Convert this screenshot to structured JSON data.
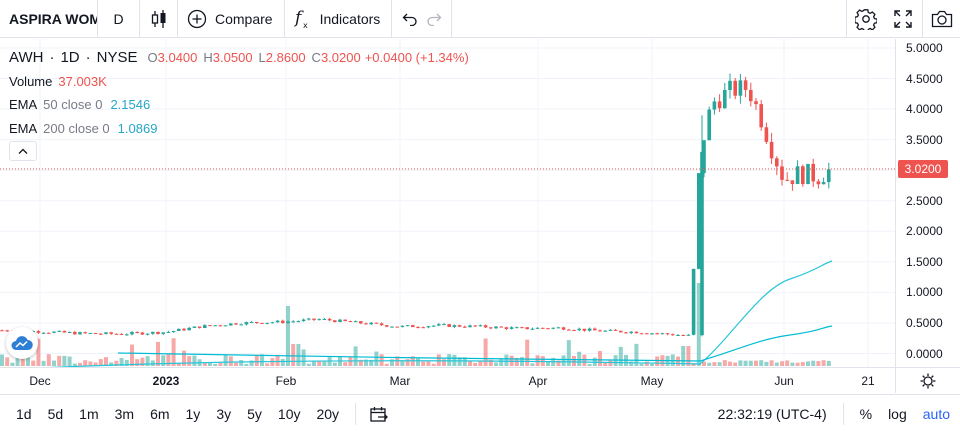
{
  "toolbar": {
    "symbol": "ASPIRA WOMEN'S HEALTH INC",
    "interval": "D",
    "compare_label": "Compare",
    "indicators_label": "Indicators",
    "chart_type_icon": "candlestick-icon",
    "right_icons": [
      "gear-icon",
      "fullscreen-icon",
      "camera-icon"
    ]
  },
  "legend": {
    "symbol": "AWH",
    "interval": "1D",
    "exchange": "NYSE",
    "open_key": "O",
    "open": "3.0400",
    "high_key": "H",
    "high": "3.0500",
    "low_key": "L",
    "low": "2.8600",
    "close_key": "C",
    "close": "3.0200",
    "change": "+0.0400 (+1.34%)",
    "volume_label": "Volume",
    "volume_value": "37.003K",
    "ema50_label": "EMA",
    "ema50_params": "50 close 0",
    "ema50_value": "2.1546",
    "ema200_label": "EMA",
    "ema200_params": "200 close 0",
    "ema200_value": "1.0869"
  },
  "price_axis": {
    "ticks": [
      "5.0000",
      "4.5000",
      "4.0000",
      "3.5000",
      "3.0000",
      "2.5000",
      "2.0000",
      "1.5000",
      "1.0000",
      "0.5000",
      "0.0000"
    ],
    "last_price": "3.0200"
  },
  "time_axis": {
    "labels": [
      {
        "text": "Dec",
        "bold": false
      },
      {
        "text": "2023",
        "bold": true
      },
      {
        "text": "Feb",
        "bold": false
      },
      {
        "text": "Mar",
        "bold": false
      },
      {
        "text": "Apr",
        "bold": false
      },
      {
        "text": "May",
        "bold": false
      },
      {
        "text": "Jun",
        "bold": false
      },
      {
        "text": "21",
        "bold": false
      }
    ]
  },
  "bottom": {
    "ranges": [
      "1d",
      "5d",
      "1m",
      "3m",
      "6m",
      "1y",
      "3y",
      "5y",
      "10y",
      "20y"
    ],
    "clock": "22:32:19 (UTC-4)",
    "percent_label": "%",
    "log_label": "log",
    "auto_label": "auto"
  },
  "colors": {
    "up": "#26a69a",
    "down": "#ef5350",
    "ema50": "#26c6da",
    "ema200": "#00bcd4",
    "accent": "#2962ff"
  },
  "chart_data": {
    "type": "candlestick",
    "price_range": [
      0,
      5
    ],
    "close_series": [
      {
        "date": "2022-11-28",
        "close": 0.38
      },
      {
        "date": "2022-12-05",
        "close": 0.36
      },
      {
        "date": "2022-12-12",
        "close": 0.34
      },
      {
        "date": "2022-12-19",
        "close": 0.33
      },
      {
        "date": "2022-12-27",
        "close": 0.32
      },
      {
        "date": "2023-01-03",
        "close": 0.33
      },
      {
        "date": "2023-01-09",
        "close": 0.36
      },
      {
        "date": "2023-01-17",
        "close": 0.42
      },
      {
        "date": "2023-01-23",
        "close": 0.48
      },
      {
        "date": "2023-01-30",
        "close": 0.5
      },
      {
        "date": "2023-02-06",
        "close": 0.49
      },
      {
        "date": "2023-02-13",
        "close": 0.52
      },
      {
        "date": "2023-02-21",
        "close": 0.55
      },
      {
        "date": "2023-02-27",
        "close": 0.52
      },
      {
        "date": "2023-03-06",
        "close": 0.48
      },
      {
        "date": "2023-03-13",
        "close": 0.42
      },
      {
        "date": "2023-03-20",
        "close": 0.46
      },
      {
        "date": "2023-03-27",
        "close": 0.44
      },
      {
        "date": "2023-04-03",
        "close": 0.42
      },
      {
        "date": "2023-04-10",
        "close": 0.46
      },
      {
        "date": "2023-04-17",
        "close": 0.4
      },
      {
        "date": "2023-04-24",
        "close": 0.39
      },
      {
        "date": "2023-05-01",
        "close": 0.37
      },
      {
        "date": "2023-05-08",
        "close": 0.33
      },
      {
        "date": "2023-05-15",
        "close": 0.31
      },
      {
        "date": "2023-05-16",
        "close": 3.55
      },
      {
        "date": "2023-05-18",
        "close": 4.1
      },
      {
        "date": "2023-05-22",
        "close": 4.3
      },
      {
        "date": "2023-05-25",
        "close": 4.2
      },
      {
        "date": "2023-05-30",
        "close": 4.4
      },
      {
        "date": "2023-06-01",
        "close": 3.4
      },
      {
        "date": "2023-06-05",
        "close": 2.95
      },
      {
        "date": "2023-06-08",
        "close": 2.7
      },
      {
        "date": "2023-06-12",
        "close": 2.95
      },
      {
        "date": "2023-06-15",
        "close": 3.02
      }
    ],
    "ema50_series": [
      {
        "date": "2022-11-28",
        "value": 0.38
      },
      {
        "date": "2023-02-13",
        "value": 0.45
      },
      {
        "date": "2023-05-15",
        "value": 0.38
      },
      {
        "date": "2023-05-22",
        "value": 0.9
      },
      {
        "date": "2023-06-01",
        "value": 1.55
      },
      {
        "date": "2023-06-15",
        "value": 2.1546
      }
    ],
    "ema200_series": [
      {
        "date": "2023-01-03",
        "value": 0.62
      },
      {
        "date": "2023-03-13",
        "value": 0.5
      },
      {
        "date": "2023-05-15",
        "value": 0.47
      },
      {
        "date": "2023-05-22",
        "value": 0.66
      },
      {
        "date": "2023-06-01",
        "value": 0.88
      },
      {
        "date": "2023-06-15",
        "value": 1.0869
      }
    ],
    "last_volume": "37.003K"
  }
}
